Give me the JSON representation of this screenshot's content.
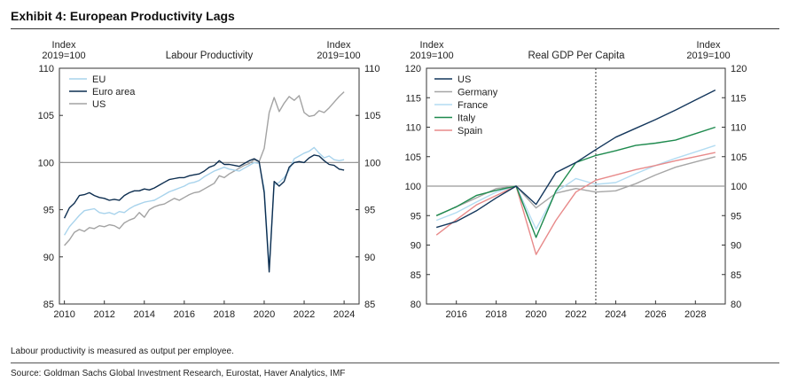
{
  "page": {
    "title": "Exhibit 4: European Productivity Lags",
    "note": "Labour productivity is measured as output per employee.",
    "source": "Source: Goldman Sachs Global Investment Research, Eurostat, Haver Analytics, IMF"
  },
  "colors": {
    "eu": "#a8d3ec",
    "euro_area": "#0d2e50",
    "us_grey": "#a3a3a3",
    "us_navy": "#14375c",
    "germany": "#a6a6a6",
    "france": "#b3dcf2",
    "italy": "#1e8a4e",
    "spain": "#e88a8a",
    "reference": "#999999"
  },
  "chart_data": [
    {
      "type": "line",
      "title": "Labour Productivity",
      "ylabel_left": [
        "Index",
        "2019=100"
      ],
      "ylabel_right": [
        "Index",
        "2019=100"
      ],
      "xlim": [
        2009.75,
        2024.75
      ],
      "ylim": [
        85,
        110
      ],
      "xticks": [
        2010,
        2012,
        2014,
        2016,
        2018,
        2020,
        2022,
        2024
      ],
      "xtick_labels": [
        "2010",
        "2012",
        "2014",
        "2016",
        "2018",
        "2020",
        "2022",
        "2024"
      ],
      "yticks": [
        85,
        90,
        95,
        100,
        105,
        110
      ],
      "ytick_labels": [
        "85",
        "90",
        "95",
        "100",
        "105",
        "110"
      ],
      "reference_y": 100,
      "legend": [
        "EU",
        "Euro area",
        "US"
      ],
      "series": [
        {
          "name": "EU",
          "color_key": "eu",
          "x": [
            2010.0,
            2010.25,
            2010.5,
            2010.75,
            2011.0,
            2011.25,
            2011.5,
            2011.75,
            2012.0,
            2012.25,
            2012.5,
            2012.75,
            2013.0,
            2013.25,
            2013.5,
            2013.75,
            2014.0,
            2014.25,
            2014.5,
            2014.75,
            2015.0,
            2015.25,
            2015.5,
            2015.75,
            2016.0,
            2016.25,
            2016.5,
            2016.75,
            2017.0,
            2017.25,
            2017.5,
            2017.75,
            2018.0,
            2018.25,
            2018.5,
            2018.75,
            2019.0,
            2019.25,
            2019.5,
            2019.75,
            2020.0,
            2020.25,
            2020.5,
            2020.75,
            2021.0,
            2021.25,
            2021.5,
            2021.75,
            2022.0,
            2022.25,
            2022.5,
            2022.75,
            2023.0,
            2023.25,
            2023.5,
            2023.75,
            2024.0
          ],
          "values": [
            92.3,
            93.2,
            93.8,
            94.4,
            94.9,
            95.0,
            95.1,
            94.7,
            94.6,
            94.7,
            94.5,
            94.8,
            94.7,
            95.1,
            95.4,
            95.6,
            95.8,
            95.9,
            96.0,
            96.3,
            96.6,
            96.9,
            97.1,
            97.3,
            97.5,
            97.8,
            97.9,
            98.1,
            98.5,
            98.8,
            99.1,
            99.3,
            99.5,
            99.3,
            99.2,
            99.1,
            99.4,
            99.7,
            100.0,
            99.9,
            97.2,
            88.9,
            97.6,
            97.9,
            98.4,
            99.2,
            100.4,
            100.7,
            101.0,
            101.2,
            101.6,
            101.0,
            100.5,
            100.7,
            100.3,
            100.2,
            100.3
          ]
        },
        {
          "name": "Euro area",
          "color_key": "euro_area",
          "x": [
            2010.0,
            2010.25,
            2010.5,
            2010.75,
            2011.0,
            2011.25,
            2011.5,
            2011.75,
            2012.0,
            2012.25,
            2012.5,
            2012.75,
            2013.0,
            2013.25,
            2013.5,
            2013.75,
            2014.0,
            2014.25,
            2014.5,
            2014.75,
            2015.0,
            2015.25,
            2015.5,
            2015.75,
            2016.0,
            2016.25,
            2016.5,
            2016.75,
            2017.0,
            2017.25,
            2017.5,
            2017.75,
            2018.0,
            2018.25,
            2018.5,
            2018.75,
            2019.0,
            2019.25,
            2019.5,
            2019.75,
            2020.0,
            2020.25,
            2020.5,
            2020.75,
            2021.0,
            2021.25,
            2021.5,
            2021.75,
            2022.0,
            2022.25,
            2022.5,
            2022.75,
            2023.0,
            2023.25,
            2023.5,
            2023.75,
            2024.0
          ],
          "values": [
            94.1,
            95.2,
            95.7,
            96.5,
            96.6,
            96.8,
            96.5,
            96.3,
            96.2,
            96.0,
            96.1,
            96.0,
            96.5,
            96.8,
            97.0,
            97.0,
            97.2,
            97.1,
            97.3,
            97.6,
            97.9,
            98.2,
            98.3,
            98.4,
            98.4,
            98.6,
            98.7,
            98.8,
            99.1,
            99.5,
            99.7,
            100.2,
            99.8,
            99.8,
            99.7,
            99.6,
            99.9,
            100.2,
            100.4,
            100.1,
            96.8,
            88.4,
            98.0,
            97.5,
            98.0,
            99.5,
            100.0,
            100.1,
            100.0,
            100.5,
            100.8,
            100.7,
            100.2,
            99.8,
            99.7,
            99.3,
            99.2
          ]
        },
        {
          "name": "US",
          "color_key": "us_grey",
          "x": [
            2010.0,
            2010.25,
            2010.5,
            2010.75,
            2011.0,
            2011.25,
            2011.5,
            2011.75,
            2012.0,
            2012.25,
            2012.5,
            2012.75,
            2013.0,
            2013.25,
            2013.5,
            2013.75,
            2014.0,
            2014.25,
            2014.5,
            2014.75,
            2015.0,
            2015.25,
            2015.5,
            2015.75,
            2016.0,
            2016.25,
            2016.5,
            2016.75,
            2017.0,
            2017.25,
            2017.5,
            2017.75,
            2018.0,
            2018.25,
            2018.5,
            2018.75,
            2019.0,
            2019.25,
            2019.5,
            2019.75,
            2020.0,
            2020.25,
            2020.5,
            2020.75,
            2021.0,
            2021.25,
            2021.5,
            2021.75,
            2022.0,
            2022.25,
            2022.5,
            2022.75,
            2023.0,
            2023.25,
            2023.5,
            2023.75,
            2024.0
          ],
          "values": [
            91.2,
            91.8,
            92.6,
            92.9,
            92.7,
            93.1,
            93.0,
            93.3,
            93.2,
            93.4,
            93.3,
            93.0,
            93.6,
            93.9,
            94.1,
            94.7,
            94.2,
            95.0,
            95.3,
            95.5,
            95.6,
            95.9,
            96.2,
            96.0,
            96.3,
            96.6,
            96.8,
            96.9,
            97.2,
            97.5,
            97.8,
            98.6,
            98.4,
            98.8,
            99.1,
            99.4,
            99.7,
            99.9,
            100.3,
            100.1,
            101.5,
            105.3,
            106.9,
            105.4,
            106.3,
            107.0,
            106.6,
            107.1,
            105.3,
            104.9,
            105.0,
            105.5,
            105.3,
            105.8,
            106.4,
            107.0,
            107.5
          ]
        }
      ]
    },
    {
      "type": "line",
      "title": "Real GDP Per Capita",
      "ylabel_left": [
        "Index",
        "2019=100"
      ],
      "ylabel_right": [
        "Index",
        "2019=100"
      ],
      "xlim": [
        2014.5,
        2029.5
      ],
      "ylim": [
        80,
        120
      ],
      "xticks": [
        2016,
        2018,
        2020,
        2022,
        2024,
        2026,
        2028
      ],
      "xtick_labels": [
        "2016",
        "2018",
        "2020",
        "2022",
        "2024",
        "2026",
        "2028"
      ],
      "yticks": [
        80,
        85,
        90,
        95,
        100,
        105,
        110,
        115,
        120
      ],
      "ytick_labels": [
        "80",
        "85",
        "90",
        "95",
        "100",
        "105",
        "110",
        "115",
        "120"
      ],
      "reference_y": 100,
      "forecast_x": 2023,
      "legend": [
        "US",
        "Germany",
        "France",
        "Italy",
        "Spain"
      ],
      "series": [
        {
          "name": "US",
          "color_key": "us_navy",
          "x": [
            2015,
            2016,
            2017,
            2018,
            2019,
            2020,
            2021,
            2022,
            2023,
            2024,
            2025,
            2026,
            2027,
            2028,
            2029
          ],
          "values": [
            93.0,
            94.0,
            95.8,
            98.0,
            100.0,
            96.9,
            102.3,
            104.0,
            106.2,
            108.3,
            109.8,
            111.3,
            112.9,
            114.6,
            116.3
          ]
        },
        {
          "name": "Germany",
          "color_key": "germany",
          "x": [
            2015,
            2016,
            2017,
            2018,
            2019,
            2020,
            2021,
            2022,
            2023,
            2024,
            2025,
            2026,
            2027,
            2028,
            2029
          ],
          "values": [
            95.0,
            96.5,
            98.0,
            99.6,
            100.0,
            96.3,
            98.8,
            99.6,
            99.0,
            99.2,
            100.4,
            101.9,
            103.2,
            104.1,
            105.0
          ]
        },
        {
          "name": "France",
          "color_key": "france",
          "x": [
            2015,
            2016,
            2017,
            2018,
            2019,
            2020,
            2021,
            2022,
            2023,
            2024,
            2025,
            2026,
            2027,
            2028,
            2029
          ],
          "values": [
            94.2,
            95.5,
            97.3,
            99.0,
            100.0,
            92.7,
            99.0,
            101.3,
            100.3,
            100.6,
            102.1,
            103.5,
            104.7,
            105.8,
            106.9
          ]
        },
        {
          "name": "Italy",
          "color_key": "italy",
          "x": [
            2015,
            2016,
            2017,
            2018,
            2019,
            2020,
            2021,
            2022,
            2023,
            2024,
            2025,
            2026,
            2027,
            2028,
            2029
          ],
          "values": [
            95.0,
            96.5,
            98.4,
            99.3,
            100.0,
            91.3,
            99.2,
            104.0,
            105.2,
            106.0,
            106.9,
            107.3,
            107.8,
            108.9,
            110.0
          ]
        },
        {
          "name": "Spain",
          "color_key": "spain",
          "x": [
            2015,
            2016,
            2017,
            2018,
            2019,
            2020,
            2021,
            2022,
            2023,
            2024,
            2025,
            2026,
            2027,
            2028,
            2029
          ],
          "values": [
            91.7,
            94.3,
            96.8,
            98.4,
            100.0,
            88.4,
            94.2,
            99.0,
            101.0,
            101.9,
            102.8,
            103.5,
            104.3,
            105.0,
            105.7
          ]
        }
      ]
    }
  ]
}
